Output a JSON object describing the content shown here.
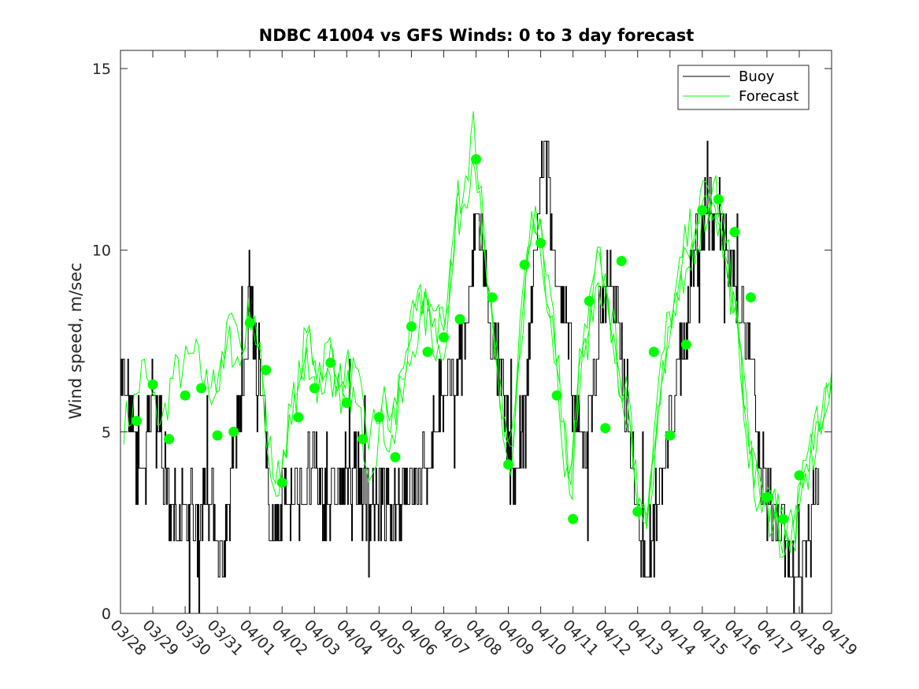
{
  "chart_data": {
    "type": "line",
    "title": "NDBC 41004 vs GFS Winds: 0 to 3 day forecast",
    "xlabel": "",
    "ylabel": "Wind speed, m/sec",
    "ylim": [
      0,
      15.5
    ],
    "y_ticks": [
      "0",
      "5",
      "10",
      "15"
    ],
    "y_tick_values": [
      0,
      5,
      10,
      15
    ],
    "x_start_day": 0,
    "x_end_day": 22,
    "x_ticks": [
      "03/28",
      "03/29",
      "03/30",
      "03/31",
      "04/01",
      "04/02",
      "04/03",
      "04/04",
      "04/05",
      "04/06",
      "04/07",
      "04/08",
      "04/09",
      "04/10",
      "04/11",
      "04/12",
      "04/13",
      "04/14",
      "04/15",
      "04/16",
      "04/17",
      "04/18",
      "04/19"
    ],
    "grid": false,
    "legend": {
      "position": "top-right",
      "entries": [
        "Buoy",
        "Forecast"
      ]
    },
    "colors": {
      "buoy": "#000000",
      "forecast": "#00ff00",
      "axes": "#262626"
    },
    "buoy_anchor_values": [
      [
        0.0,
        7
      ],
      [
        0.15,
        6.2
      ],
      [
        0.4,
        5
      ],
      [
        0.6,
        3
      ],
      [
        0.9,
        5.5
      ],
      [
        1.1,
        6.5
      ],
      [
        1.3,
        4
      ],
      [
        1.5,
        3
      ],
      [
        1.8,
        2.5
      ],
      [
        2.1,
        3
      ],
      [
        2.4,
        2.2
      ],
      [
        2.6,
        4
      ],
      [
        2.8,
        3
      ],
      [
        3.0,
        2
      ],
      [
        3.2,
        1.5
      ],
      [
        3.5,
        4.5
      ],
      [
        3.8,
        6.5
      ],
      [
        4.0,
        9
      ],
      [
        4.2,
        6.5
      ],
      [
        4.4,
        5.5
      ],
      [
        4.6,
        3
      ],
      [
        4.8,
        2
      ],
      [
        5.0,
        3.5
      ],
      [
        5.3,
        3
      ],
      [
        5.6,
        3.5
      ],
      [
        6.0,
        4
      ],
      [
        6.4,
        3
      ],
      [
        6.8,
        3.5
      ],
      [
        7.2,
        4
      ],
      [
        7.6,
        3
      ],
      [
        8.0,
        3
      ],
      [
        8.4,
        2.5
      ],
      [
        8.8,
        3.5
      ],
      [
        9.2,
        3.5
      ],
      [
        9.6,
        4.5
      ],
      [
        9.9,
        5.5
      ],
      [
        10.2,
        6
      ],
      [
        10.5,
        7
      ],
      [
        10.8,
        8.5
      ],
      [
        11.0,
        11
      ],
      [
        11.2,
        10
      ],
      [
        11.5,
        7.5
      ],
      [
        11.8,
        6
      ],
      [
        12.0,
        4.5
      ],
      [
        12.2,
        3.2
      ],
      [
        12.5,
        5
      ],
      [
        12.7,
        8.5
      ],
      [
        12.9,
        11
      ],
      [
        13.1,
        12.5
      ],
      [
        13.4,
        10
      ],
      [
        13.7,
        8.5
      ],
      [
        14.0,
        6
      ],
      [
        14.3,
        4
      ],
      [
        14.5,
        5.5
      ],
      [
        14.8,
        8
      ],
      [
        15.1,
        9.5
      ],
      [
        15.4,
        8
      ],
      [
        15.7,
        5.5
      ],
      [
        16.0,
        2.5
      ],
      [
        16.3,
        1.5
      ],
      [
        16.6,
        3
      ],
      [
        16.9,
        4.5
      ],
      [
        17.2,
        6.5
      ],
      [
        17.5,
        8
      ],
      [
        17.8,
        10
      ],
      [
        18.1,
        11
      ],
      [
        18.4,
        11.3
      ],
      [
        18.7,
        10.5
      ],
      [
        19.0,
        9
      ],
      [
        19.3,
        8
      ],
      [
        19.6,
        6
      ],
      [
        19.8,
        4
      ],
      [
        20.1,
        3
      ],
      [
        20.4,
        2.2
      ],
      [
        20.7,
        1.5
      ],
      [
        20.95,
        0.2
      ],
      [
        21.2,
        2
      ],
      [
        21.5,
        3.5
      ],
      [
        21.6,
        4
      ]
    ],
    "forecast_anchor_values": [
      [
        0.2,
        5.3
      ],
      [
        0.45,
        5.8
      ],
      [
        0.7,
        6.8
      ],
      [
        1.0,
        5.8
      ],
      [
        1.3,
        5.2
      ],
      [
        1.6,
        6.5
      ],
      [
        2.0,
        6.8
      ],
      [
        2.3,
        7.1
      ],
      [
        2.7,
        6.2
      ],
      [
        3.0,
        6.2
      ],
      [
        3.4,
        7.5
      ],
      [
        3.7,
        6.8
      ],
      [
        4.0,
        8.5
      ],
      [
        4.3,
        7.0
      ],
      [
        4.6,
        4.2
      ],
      [
        4.85,
        3.2
      ],
      [
        5.1,
        4.5
      ],
      [
        5.5,
        6.0
      ],
      [
        5.8,
        7.5
      ],
      [
        6.1,
        6.4
      ],
      [
        6.5,
        7.0
      ],
      [
        6.8,
        6.0
      ],
      [
        7.1,
        6.5
      ],
      [
        7.4,
        5.6
      ],
      [
        7.7,
        4.4
      ],
      [
        8.1,
        5.5
      ],
      [
        8.4,
        5.0
      ],
      [
        8.8,
        6.5
      ],
      [
        9.1,
        7.9
      ],
      [
        9.5,
        8.5
      ],
      [
        9.8,
        7.5
      ],
      [
        10.1,
        8.0
      ],
      [
        10.4,
        11.0
      ],
      [
        10.7,
        12.0
      ],
      [
        10.95,
        13.2
      ],
      [
        11.2,
        10.5
      ],
      [
        11.5,
        8.0
      ],
      [
        11.8,
        5.5
      ],
      [
        12.1,
        4.0
      ],
      [
        12.4,
        8.0
      ],
      [
        12.75,
        11.0
      ],
      [
        13.0,
        10.5
      ],
      [
        13.3,
        8.5
      ],
      [
        13.6,
        6.0
      ],
      [
        13.9,
        3.0
      ],
      [
        14.2,
        6.5
      ],
      [
        14.5,
        8.0
      ],
      [
        14.8,
        9.5
      ],
      [
        15.1,
        8.5
      ],
      [
        15.4,
        6.5
      ],
      [
        15.7,
        5.5
      ],
      [
        16.0,
        3.0
      ],
      [
        16.3,
        2.5
      ],
      [
        16.6,
        5.5
      ],
      [
        16.9,
        7.5
      ],
      [
        17.2,
        8.5
      ],
      [
        17.5,
        10.0
      ],
      [
        17.8,
        10.5
      ],
      [
        18.1,
        11.3
      ],
      [
        18.4,
        11.5
      ],
      [
        18.7,
        10.0
      ],
      [
        19.0,
        8.5
      ],
      [
        19.3,
        6.0
      ],
      [
        19.6,
        3.5
      ],
      [
        19.9,
        3.0
      ],
      [
        20.2,
        3.0
      ],
      [
        20.5,
        2.0
      ],
      [
        20.8,
        2.0
      ],
      [
        21.1,
        3.5
      ],
      [
        21.4,
        4.5
      ],
      [
        21.7,
        5.5
      ],
      [
        22.0,
        6.5
      ]
    ],
    "forecast_points": [
      [
        0.5,
        5.3
      ],
      [
        1.0,
        6.3
      ],
      [
        1.5,
        4.8
      ],
      [
        2.0,
        6.0
      ],
      [
        2.5,
        6.2
      ],
      [
        3.0,
        4.9
      ],
      [
        3.5,
        5.0
      ],
      [
        4.0,
        8.0
      ],
      [
        4.5,
        6.7
      ],
      [
        5.0,
        3.6
      ],
      [
        5.5,
        5.4
      ],
      [
        6.0,
        6.2
      ],
      [
        6.5,
        6.9
      ],
      [
        7.0,
        5.8
      ],
      [
        7.5,
        4.8
      ],
      [
        8.0,
        5.4
      ],
      [
        8.5,
        4.3
      ],
      [
        9.0,
        7.9
      ],
      [
        9.5,
        7.2
      ],
      [
        10.0,
        7.6
      ],
      [
        10.5,
        8.1
      ],
      [
        11.0,
        12.5
      ],
      [
        11.5,
        8.7
      ],
      [
        12.0,
        4.1
      ],
      [
        12.5,
        9.6
      ],
      [
        13.0,
        10.2
      ],
      [
        13.5,
        6.0
      ],
      [
        14.0,
        2.6
      ],
      [
        14.5,
        8.6
      ],
      [
        15.0,
        5.1
      ],
      [
        15.5,
        9.7
      ],
      [
        16.0,
        2.8
      ],
      [
        16.5,
        7.2
      ],
      [
        17.0,
        4.9
      ],
      [
        17.5,
        7.4
      ],
      [
        18.0,
        11.1
      ],
      [
        18.5,
        11.4
      ],
      [
        19.0,
        10.5
      ],
      [
        19.5,
        8.7
      ],
      [
        20.0,
        3.2
      ],
      [
        20.5,
        2.6
      ],
      [
        21.0,
        3.8
      ]
    ]
  }
}
